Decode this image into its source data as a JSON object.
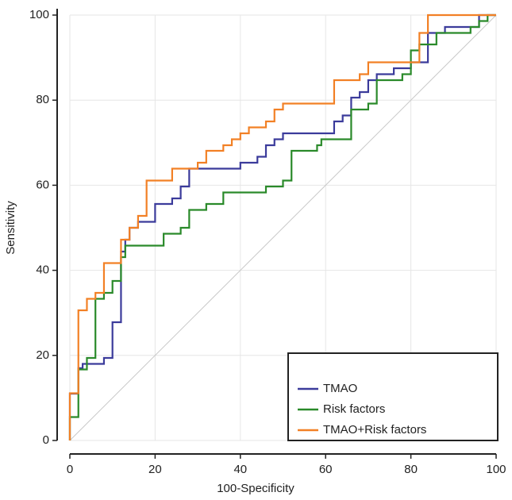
{
  "chart_data": {
    "type": "line",
    "x_label": "100-Specificity",
    "y_label": "Sensitivity",
    "xlim": [
      0,
      100
    ],
    "ylim": [
      0,
      100
    ],
    "xticks": [
      0,
      20,
      40,
      60,
      80,
      100
    ],
    "yticks": [
      0,
      20,
      40,
      60,
      80,
      100
    ],
    "grid": true,
    "legend": "lower right",
    "series": [
      {
        "name": "TMAO",
        "color": "#3b3b9b",
        "x": [
          0,
          0,
          2,
          2,
          3,
          3,
          8,
          8,
          10,
          10,
          12,
          12,
          13,
          13,
          14,
          14,
          16,
          16,
          20,
          20,
          24,
          24,
          26,
          26,
          28,
          28,
          40,
          40,
          44,
          44,
          46,
          46,
          48,
          48,
          50,
          50,
          62,
          62,
          64,
          64,
          66,
          66,
          68,
          68,
          70,
          70,
          72,
          72,
          76,
          76,
          80,
          80,
          84,
          84,
          88,
          88,
          96,
          96,
          100
        ],
        "values": [
          0,
          11,
          11,
          17,
          17,
          18,
          18,
          19.4,
          19.4,
          27.8,
          27.8,
          44.4,
          44.4,
          47.2,
          47.2,
          50,
          50,
          51.4,
          51.4,
          55.6,
          55.6,
          56.9,
          56.9,
          59.7,
          59.7,
          63.9,
          63.9,
          65.3,
          65.3,
          66.7,
          66.7,
          69.4,
          69.4,
          70.8,
          70.8,
          72.2,
          72.2,
          75,
          75,
          76.4,
          76.4,
          80.6,
          80.6,
          81.9,
          81.9,
          84.7,
          84.7,
          86.1,
          86.1,
          87.5,
          87.5,
          88.9,
          88.9,
          95.8,
          95.8,
          97.2,
          97.2,
          100,
          100
        ]
      },
      {
        "name": "Risk factors",
        "color": "#2a8a2a",
        "x": [
          0,
          0,
          2,
          2,
          4,
          4,
          6,
          6,
          8,
          8,
          10,
          10,
          12,
          12,
          13,
          13,
          22,
          22,
          26,
          26,
          28,
          28,
          32,
          32,
          36,
          36,
          46,
          46,
          50,
          50,
          52,
          52,
          58,
          58,
          59,
          59,
          66,
          66,
          70,
          70,
          72,
          72,
          78,
          78,
          80,
          80,
          82,
          82,
          86,
          86,
          94,
          94,
          96,
          96,
          98,
          98,
          100
        ],
        "values": [
          0,
          5.5,
          5.5,
          16.7,
          16.7,
          19.4,
          19.4,
          33.3,
          33.3,
          34.7,
          34.7,
          37.5,
          37.5,
          43.1,
          43.1,
          45.8,
          45.8,
          48.6,
          48.6,
          50,
          50,
          54.2,
          54.2,
          55.6,
          55.6,
          58.3,
          58.3,
          59.7,
          59.7,
          61.1,
          61.1,
          68.1,
          68.1,
          69.4,
          69.4,
          70.8,
          70.8,
          77.8,
          77.8,
          79.2,
          79.2,
          84.7,
          84.7,
          86.1,
          86.1,
          91.7,
          91.7,
          93.1,
          93.1,
          95.8,
          95.8,
          97.2,
          97.2,
          98.6,
          98.6,
          100,
          100
        ]
      },
      {
        "name": "TMAO+Risk factors",
        "color": "#f28025",
        "x": [
          0,
          0,
          2,
          2,
          4,
          4,
          6,
          6,
          8,
          8,
          12,
          12,
          14,
          14,
          16,
          16,
          18,
          18,
          24,
          24,
          30,
          30,
          32,
          32,
          36,
          36,
          38,
          38,
          40,
          40,
          42,
          42,
          46,
          46,
          48,
          48,
          50,
          50,
          62,
          62,
          68,
          68,
          70,
          70,
          82,
          82,
          84,
          84,
          100
        ],
        "values": [
          0,
          11.1,
          11.1,
          30.6,
          30.6,
          33.3,
          33.3,
          34.7,
          34.7,
          41.7,
          41.7,
          47.2,
          47.2,
          50,
          50,
          52.8,
          52.8,
          61.1,
          61.1,
          63.9,
          63.9,
          65.3,
          65.3,
          68.1,
          68.1,
          69.4,
          69.4,
          70.8,
          70.8,
          72.2,
          72.2,
          73.6,
          73.6,
          75,
          75,
          77.8,
          77.8,
          79.2,
          79.2,
          84.7,
          84.7,
          86.1,
          86.1,
          88.9,
          88.9,
          95.8,
          95.8,
          100,
          100
        ]
      }
    ]
  }
}
